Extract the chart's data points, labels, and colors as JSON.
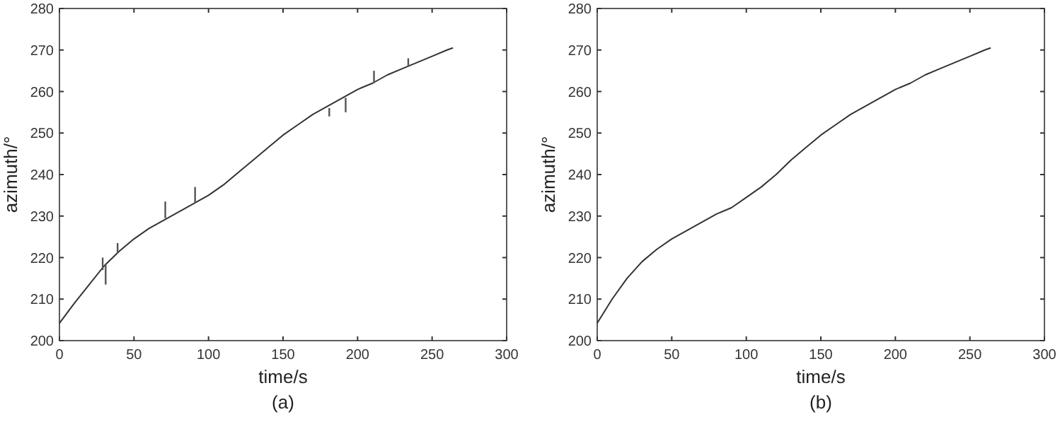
{
  "chart_data": [
    {
      "type": "line",
      "xlabel": "time/s",
      "ylabel": "azimuth/°",
      "annotations": [
        "(a)"
      ],
      "xlim": [
        0,
        300
      ],
      "ylim": [
        200,
        280
      ],
      "xticks": [
        0,
        50,
        100,
        150,
        200,
        250,
        300
      ],
      "yticks": [
        200,
        210,
        220,
        230,
        240,
        250,
        260,
        270,
        280
      ],
      "grid": false,
      "series": [
        {
          "color": "#333333",
          "x": [
            0,
            10,
            20,
            30,
            40,
            50,
            60,
            70,
            80,
            90,
            100,
            110,
            120,
            130,
            140,
            150,
            160,
            170,
            180,
            190,
            200,
            210,
            220,
            230,
            240,
            250,
            260,
            264
          ],
          "values": [
            204.2,
            209,
            213.5,
            218,
            221.5,
            224.5,
            227,
            229,
            231,
            233,
            235,
            237.5,
            240.5,
            243.5,
            246.5,
            249.5,
            252,
            254.5,
            256.5,
            258.5,
            260.5,
            262,
            264,
            265.5,
            267,
            268.5,
            270,
            270.5
          ]
        },
        {
          "type": "bar",
          "color": "#555555",
          "x": [
            29,
            31,
            39,
            71,
            91,
            181,
            192,
            211,
            234
          ],
          "base": [
            217,
            213.5,
            221,
            229.5,
            233,
            254,
            255,
            262,
            266
          ],
          "values": [
            3,
            5,
            2.5,
            4,
            4,
            2,
            3.5,
            3,
            2
          ]
        }
      ]
    },
    {
      "type": "line",
      "xlabel": "time/s",
      "ylabel": "azimuth/°",
      "annotations": [
        "(b)"
      ],
      "xlim": [
        0,
        300
      ],
      "ylim": [
        200,
        280
      ],
      "xticks": [
        0,
        50,
        100,
        150,
        200,
        250,
        300
      ],
      "yticks": [
        200,
        210,
        220,
        230,
        240,
        250,
        260,
        270,
        280
      ],
      "grid": false,
      "series": [
        {
          "color": "#333333",
          "x": [
            0,
            10,
            20,
            30,
            40,
            50,
            60,
            70,
            80,
            90,
            100,
            110,
            120,
            130,
            140,
            150,
            160,
            170,
            180,
            190,
            200,
            210,
            220,
            230,
            240,
            250,
            260,
            264
          ],
          "values": [
            204.2,
            210,
            215,
            219,
            222,
            224.5,
            226.5,
            228.5,
            230.5,
            232,
            234.5,
            237,
            240,
            243.5,
            246.5,
            249.5,
            252,
            254.5,
            256.5,
            258.5,
            260.5,
            262,
            264,
            265.5,
            267,
            268.5,
            270,
            270.5
          ]
        }
      ]
    }
  ]
}
